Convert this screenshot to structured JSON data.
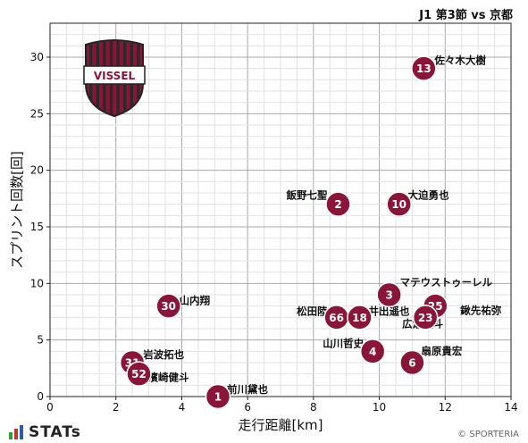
{
  "title": "J1 第3節 vs 京都",
  "brand": "STATs",
  "copyright": "© SPORTERIA",
  "logo_text": "VISSEL",
  "colors": {
    "point": "#8a1538",
    "point_text": "#ffffff",
    "grid": "#b5b5b5",
    "brand_green": "#2e9e3e",
    "brand_red": "#c0392b",
    "brand_blue": "#2b5ea7"
  },
  "chart_data": {
    "type": "scatter",
    "xlabel": "走行距離[km]",
    "ylabel": "スプリント回数[回]",
    "xlim": [
      0,
      14
    ],
    "ylim": [
      0,
      33
    ],
    "xticks": [
      0,
      2,
      4,
      6,
      8,
      10,
      12,
      14
    ],
    "yticks": [
      0,
      5,
      10,
      15,
      20,
      25,
      30
    ],
    "grid": true,
    "points": [
      {
        "number": "13",
        "name": "佐々木大樹",
        "x": 11.35,
        "y": 29
      },
      {
        "number": "2",
        "name": "飯野七聖",
        "x": 8.75,
        "y": 17
      },
      {
        "number": "10",
        "name": "大迫勇也",
        "x": 10.6,
        "y": 17
      },
      {
        "number": "30",
        "name": "山内翔",
        "x": 3.6,
        "y": 8
      },
      {
        "number": "3",
        "name": "マテウストゥーレル",
        "x": 10.3,
        "y": 9
      },
      {
        "number": "25",
        "name": "鍬先祐弥",
        "x": 11.7,
        "y": 8
      },
      {
        "number": "23",
        "name": "広瀬陸斗",
        "x": 11.4,
        "y": 7
      },
      {
        "number": "66",
        "name": "松田陸",
        "x": 8.7,
        "y": 7
      },
      {
        "number": "18",
        "name": "井出遥也",
        "x": 9.4,
        "y": 7
      },
      {
        "number": "4",
        "name": "山川哲史",
        "x": 9.8,
        "y": 4
      },
      {
        "number": "6",
        "name": "扇原貴宏",
        "x": 11.0,
        "y": 3
      },
      {
        "number": "31",
        "name": "岩波拓也",
        "x": 2.5,
        "y": 3
      },
      {
        "number": "52",
        "name": "濱崎健斗",
        "x": 2.7,
        "y": 2
      },
      {
        "number": "1",
        "name": "前川黛也",
        "x": 5.1,
        "y": 0
      }
    ]
  }
}
